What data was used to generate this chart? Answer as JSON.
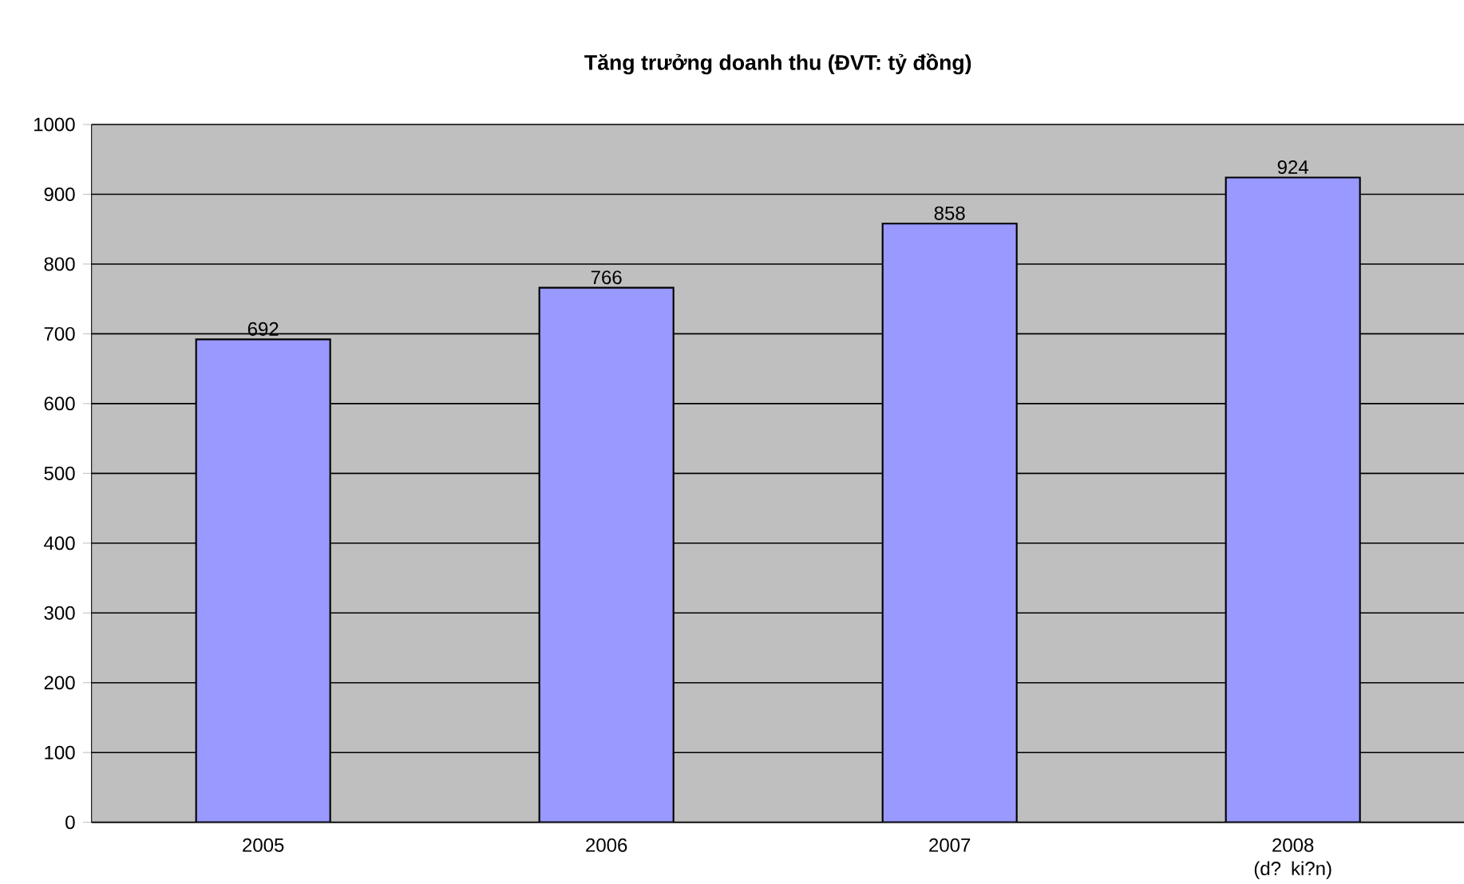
{
  "chart_data": {
    "type": "bar",
    "title": "Tăng trưởng doanh thu (ĐVT: tỷ đồng)",
    "categories": [
      "2005",
      "2006",
      "2007",
      "2008 (d? ki?n)"
    ],
    "series": [
      {
        "color": "#9999ff",
        "values": [
          692,
          766,
          858,
          924
        ]
      }
    ],
    "ylim": [
      0,
      1000
    ],
    "yticks": [
      0,
      100,
      200,
      300,
      400,
      500,
      600,
      700,
      800,
      900,
      1000
    ],
    "grid": "y",
    "data_labels": true
  }
}
